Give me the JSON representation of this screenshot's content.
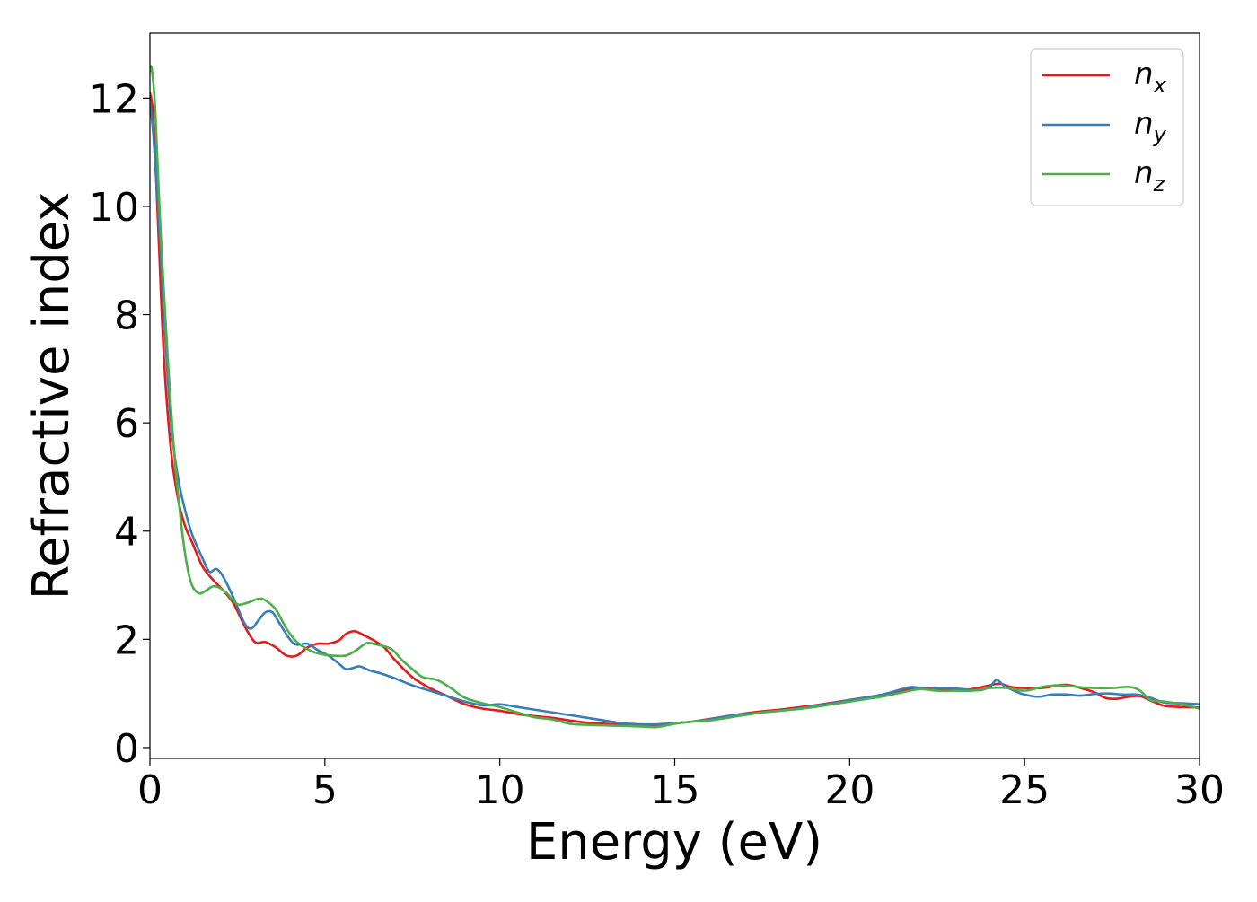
{
  "chart_data": {
    "type": "line",
    "xlabel": "Energy (eV)",
    "ylabel": "Refractive index",
    "xlim": [
      0,
      30
    ],
    "ylim": [
      -0.2,
      13.2
    ],
    "x_ticks": [
      0,
      5,
      10,
      15,
      20,
      25,
      30
    ],
    "y_ticks": [
      0,
      2,
      4,
      6,
      8,
      10,
      12
    ],
    "grid": false,
    "legend_position": "top-right",
    "series": [
      {
        "name": "n_x",
        "label_base": "n",
        "label_sub": "x",
        "color": "#e41a1c",
        "x": [
          0,
          0.1,
          0.25,
          0.4,
          0.6,
          0.8,
          1.0,
          1.2,
          1.5,
          1.8,
          2.1,
          2.4,
          2.7,
          3.0,
          3.3,
          3.6,
          3.9,
          4.2,
          4.5,
          4.8,
          5.1,
          5.4,
          5.6,
          5.85,
          6.1,
          6.4,
          6.7,
          7.0,
          7.5,
          8.0,
          8.5,
          9.0,
          9.5,
          10,
          10.5,
          11,
          11.5,
          12,
          12.5,
          13,
          13.5,
          14,
          14.5,
          15,
          15.5,
          16,
          16.5,
          17,
          17.5,
          18,
          18.5,
          19,
          19.5,
          20,
          20.5,
          21,
          21.5,
          22,
          22.5,
          23,
          23.5,
          24,
          24.3,
          24.6,
          25,
          25.5,
          25.8,
          26.2,
          26.6,
          27,
          27.3,
          27.6,
          28,
          28.3,
          28.6,
          29,
          29.5,
          30
        ],
        "values": [
          12.1,
          11.6,
          9.4,
          7.2,
          5.5,
          4.6,
          4.1,
          3.8,
          3.35,
          3.1,
          2.9,
          2.65,
          2.25,
          1.95,
          1.95,
          1.85,
          1.7,
          1.7,
          1.85,
          1.92,
          1.92,
          1.98,
          2.1,
          2.15,
          2.08,
          1.98,
          1.85,
          1.62,
          1.3,
          1.1,
          0.95,
          0.8,
          0.72,
          0.68,
          0.62,
          0.58,
          0.55,
          0.5,
          0.46,
          0.44,
          0.42,
          0.41,
          0.42,
          0.45,
          0.48,
          0.53,
          0.58,
          0.63,
          0.67,
          0.7,
          0.74,
          0.78,
          0.83,
          0.88,
          0.93,
          0.98,
          1.05,
          1.1,
          1.08,
          1.06,
          1.08,
          1.15,
          1.18,
          1.12,
          1.1,
          1.1,
          1.13,
          1.16,
          1.1,
          1.02,
          0.92,
          0.9,
          0.94,
          0.95,
          0.87,
          0.77,
          0.75,
          0.74
        ]
      },
      {
        "name": "n_y",
        "label_base": "n",
        "label_sub": "y",
        "color": "#377eb8",
        "x": [
          0,
          0.1,
          0.25,
          0.4,
          0.6,
          0.8,
          1.0,
          1.2,
          1.5,
          1.7,
          1.9,
          2.1,
          2.4,
          2.7,
          2.9,
          3.1,
          3.3,
          3.5,
          3.7,
          4.0,
          4.2,
          4.5,
          4.8,
          5.1,
          5.4,
          5.6,
          5.8,
          6.0,
          6.3,
          6.6,
          7.0,
          7.5,
          8.0,
          8.5,
          9.0,
          9.5,
          10,
          10.5,
          11,
          11.5,
          12,
          12.5,
          13,
          13.5,
          14,
          14.5,
          15,
          15.5,
          16,
          16.5,
          17,
          17.5,
          18,
          18.5,
          19,
          19.5,
          20,
          20.5,
          21,
          21.5,
          21.8,
          22.2,
          22.7,
          23.2,
          23.7,
          24,
          24.2,
          24.4,
          24.7,
          25,
          25.4,
          25.8,
          26.2,
          26.6,
          27,
          27.4,
          27.8,
          28.2,
          28.6,
          29,
          29.5,
          30
        ],
        "values": [
          11.9,
          11.3,
          9.8,
          8.0,
          6.0,
          5.0,
          4.4,
          3.95,
          3.5,
          3.25,
          3.3,
          3.15,
          2.75,
          2.3,
          2.2,
          2.35,
          2.5,
          2.5,
          2.3,
          2.0,
          1.9,
          1.92,
          1.8,
          1.7,
          1.55,
          1.45,
          1.47,
          1.5,
          1.42,
          1.37,
          1.28,
          1.15,
          1.05,
          0.95,
          0.85,
          0.78,
          0.8,
          0.75,
          0.7,
          0.65,
          0.6,
          0.55,
          0.5,
          0.45,
          0.43,
          0.43,
          0.45,
          0.48,
          0.52,
          0.58,
          0.62,
          0.65,
          0.68,
          0.72,
          0.77,
          0.82,
          0.88,
          0.93,
          0.99,
          1.08,
          1.12,
          1.08,
          1.1,
          1.08,
          1.06,
          1.12,
          1.25,
          1.15,
          1.05,
          0.98,
          0.94,
          0.98,
          0.98,
          0.96,
          0.99,
          1.0,
          0.98,
          0.98,
          0.92,
          0.83,
          0.82,
          0.8
        ]
      },
      {
        "name": "n_z",
        "label_base": "n",
        "label_sub": "z",
        "color": "#4daf4a",
        "x": [
          0,
          0.05,
          0.15,
          0.3,
          0.5,
          0.7,
          0.9,
          1.05,
          1.2,
          1.4,
          1.6,
          1.8,
          2.0,
          2.2,
          2.5,
          2.8,
          3.1,
          3.3,
          3.6,
          3.9,
          4.2,
          4.5,
          4.8,
          5.2,
          5.6,
          5.9,
          6.2,
          6.5,
          6.9,
          7.2,
          7.5,
          7.8,
          8.2,
          8.6,
          9.0,
          9.5,
          10,
          10.5,
          11,
          11.5,
          12,
          12.5,
          13,
          13.5,
          14,
          14.5,
          15,
          15.5,
          16,
          16.5,
          17,
          17.5,
          18,
          18.5,
          19,
          19.5,
          20,
          20.5,
          21,
          21.5,
          22,
          22.5,
          23,
          23.5,
          24,
          24.5,
          25,
          25.5,
          26,
          26.5,
          27,
          27.5,
          28,
          28.3,
          28.6,
          29,
          29.5,
          30
        ],
        "values": [
          12.5,
          12.55,
          11.8,
          9.6,
          7.3,
          5.4,
          4.1,
          3.4,
          3.0,
          2.85,
          2.9,
          2.98,
          2.95,
          2.85,
          2.65,
          2.68,
          2.75,
          2.72,
          2.55,
          2.2,
          1.95,
          1.82,
          1.74,
          1.7,
          1.7,
          1.8,
          1.93,
          1.9,
          1.82,
          1.62,
          1.45,
          1.3,
          1.25,
          1.1,
          0.92,
          0.82,
          0.75,
          0.65,
          0.56,
          0.52,
          0.44,
          0.42,
          0.41,
          0.4,
          0.39,
          0.38,
          0.44,
          0.48,
          0.5,
          0.55,
          0.6,
          0.65,
          0.68,
          0.71,
          0.75,
          0.8,
          0.85,
          0.9,
          0.95,
          1.02,
          1.08,
          1.05,
          1.05,
          1.05,
          1.1,
          1.1,
          1.05,
          1.12,
          1.15,
          1.12,
          1.1,
          1.1,
          1.12,
          1.05,
          0.88,
          0.85,
          0.8,
          0.72
        ]
      }
    ]
  }
}
